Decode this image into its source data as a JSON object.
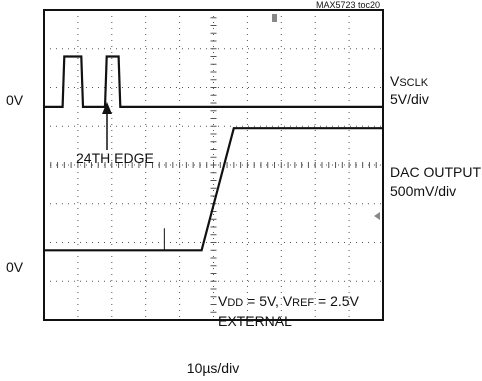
{
  "chart_data": {
    "type": "line",
    "header": "MAX5723 toc20",
    "x_scale": "10µs/div",
    "divisions": {
      "x": 10,
      "y": 8
    },
    "channels": [
      {
        "name_main": "V",
        "name_sub": "SCLK",
        "scale": "5V/div",
        "ground_label": "0V",
        "ground_level_div": 5.5,
        "x_div": [
          0,
          0.55,
          0.6,
          1.1,
          1.15,
          1.8,
          1.85,
          2.2,
          2.25,
          2.6,
          2.65,
          10
        ],
        "y_div": [
          5.5,
          5.5,
          6.8,
          6.8,
          5.5,
          5.5,
          6.8,
          6.8,
          5.5,
          5.5,
          5.5,
          5.5
        ]
      },
      {
        "name": "DAC OUTPUT",
        "scale": "500mV/div",
        "ground_label": "0V",
        "ground_level_div": 1.8,
        "x_div": [
          0,
          3.8,
          4.65,
          5.6,
          10
        ],
        "y_div": [
          1.8,
          1.8,
          1.8,
          4.95,
          4.95
        ]
      }
    ],
    "annotation": "24TH EDGE",
    "conditions": {
      "vdd_main": "V",
      "vdd_sub": "DD",
      "vdd_value": " = 5V, ",
      "vref_main": "V",
      "vref_sub": "REF",
      "vref_value": " = 2.5V",
      "line2": "EXTERNAL"
    }
  },
  "colors": {
    "background": "#ffffff",
    "trace": "#111111",
    "grid": "#555555"
  }
}
